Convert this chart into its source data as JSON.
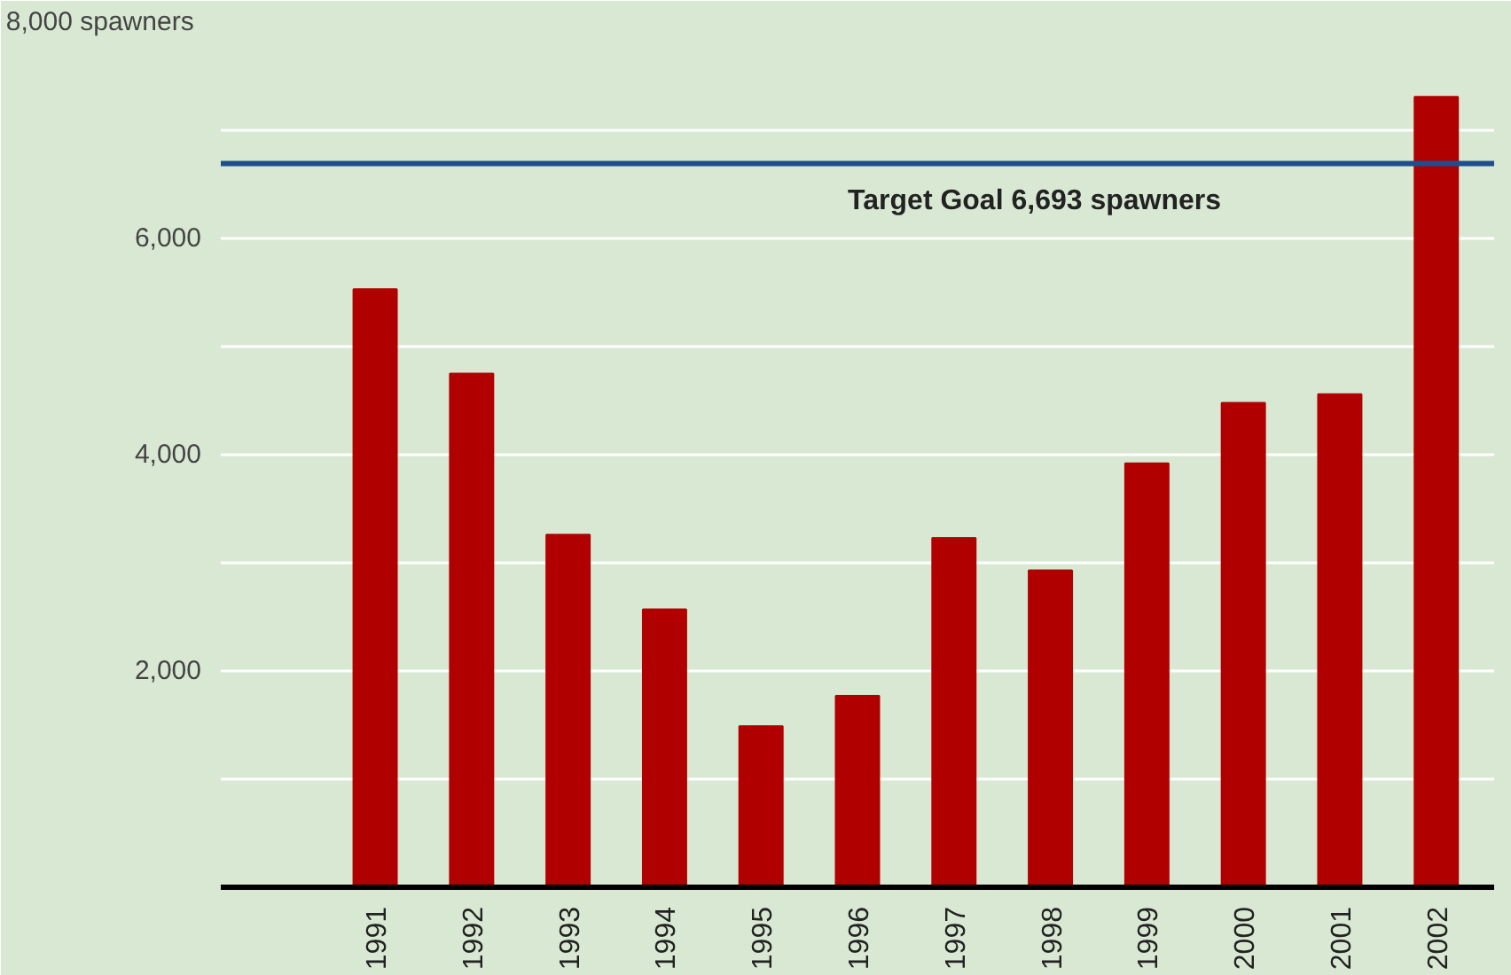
{
  "chart_data": {
    "type": "bar",
    "categories": [
      "1991",
      "1992",
      "1993",
      "1994",
      "1995",
      "1996",
      "1997",
      "1998",
      "1999",
      "2000",
      "2001",
      "2002"
    ],
    "values": [
      5530,
      4750,
      3260,
      2570,
      1490,
      1770,
      3230,
      2930,
      3920,
      4480,
      4560,
      7310
    ],
    "color": "#b00000",
    "ylim": [
      0,
      8000
    ],
    "yticks": [
      {
        "value": 1000,
        "label": null
      },
      {
        "value": 2000,
        "label": "2,000"
      },
      {
        "value": 3000,
        "label": null
      },
      {
        "value": 4000,
        "label": "4,000"
      },
      {
        "value": 5000,
        "label": null
      },
      {
        "value": 6000,
        "label": "6,000"
      },
      {
        "value": 7000,
        "label": null
      },
      {
        "value": 8000,
        "label": "8,000  spawners"
      }
    ],
    "grid": "y",
    "ref_lines": [
      {
        "axis": "y",
        "value": 6693,
        "label": "Target Goal 6,693 spawners",
        "color": "#1f4e8c"
      }
    ]
  }
}
